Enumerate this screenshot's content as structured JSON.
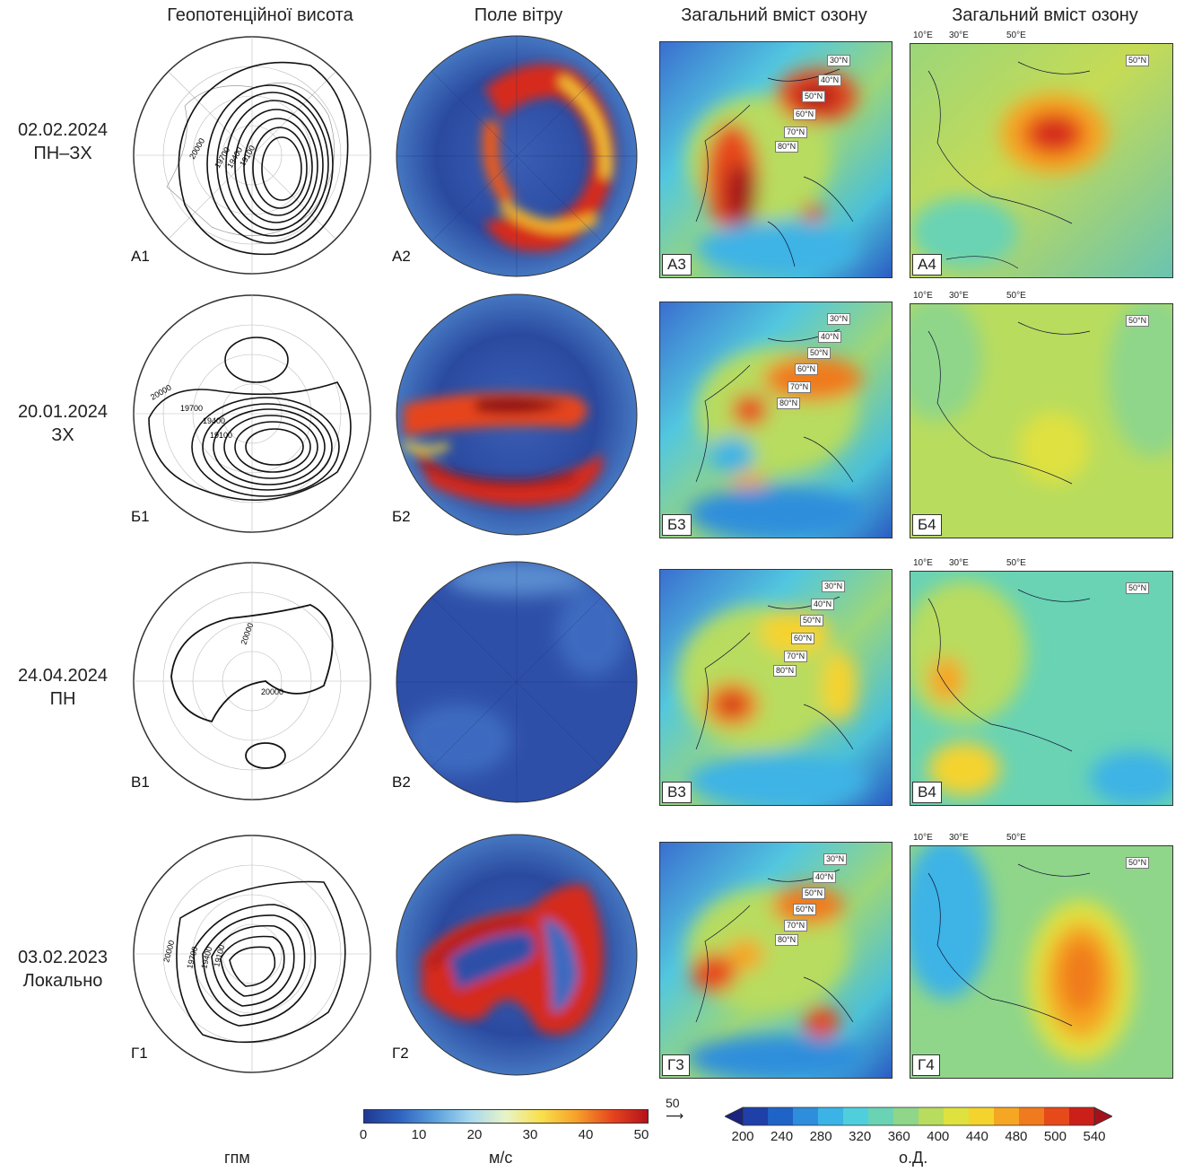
{
  "columns": {
    "geopotential": "Геопотенційної висота",
    "wind": "Поле вітру",
    "ozone1": "Загальний вміст озону",
    "ozone2": "Загальний вміст озону"
  },
  "rows": [
    {
      "date": "02.02.2024",
      "type": "ПН–ЗХ",
      "labels": [
        "А1",
        "А2",
        "А3",
        "А4"
      ],
      "contours": [
        "20000",
        "19700",
        "19400",
        "19100"
      ],
      "lon": [
        "10°E",
        "30°E",
        "50°E"
      ]
    },
    {
      "date": "20.01.2024",
      "type": "ЗХ",
      "labels": [
        "Б1",
        "Б2",
        "Б3",
        "Б4"
      ],
      "contours": [
        "20000",
        "19700",
        "19400",
        "19100"
      ],
      "lon": [
        "10°E",
        "30°E",
        "50°E"
      ]
    },
    {
      "date": "24.04.2024",
      "type": "ПН",
      "labels": [
        "В1",
        "В2",
        "В3",
        "В4"
      ],
      "contours": [
        "20000",
        "20000"
      ],
      "lon": [
        "10°E",
        "30°E",
        "50°E"
      ]
    },
    {
      "date": "03.02.2023",
      "type": "Локально",
      "labels": [
        "Г1",
        "Г2",
        "Г3",
        "Г4"
      ],
      "contours": [
        "20000",
        "19700",
        "19400",
        "19100"
      ],
      "lon": [
        "10°E",
        "30°E",
        "50°E"
      ]
    }
  ],
  "lat_tags": [
    "30°N",
    "40°N",
    "50°N",
    "60°N",
    "70°N",
    "80°N"
  ],
  "lat_tag_50": "50°N",
  "colorbars": {
    "wind": {
      "ticks": [
        "0",
        "10",
        "20",
        "30",
        "40",
        "50"
      ],
      "unit": "м/с",
      "vector_ref": "50",
      "colors": [
        "#1f3a93",
        "#2f63c0",
        "#5aa0dc",
        "#a8d8ef",
        "#e8f4c8",
        "#f9e04a",
        "#f6a02a",
        "#e6451e",
        "#b4121a"
      ]
    },
    "ozone": {
      "ticks": [
        "200",
        "240",
        "280",
        "320",
        "360",
        "400",
        "440",
        "480",
        "500",
        "540"
      ],
      "unit": "о.Д.",
      "colors": [
        "#1a237e",
        "#1e40a8",
        "#1f63c7",
        "#2f8edc",
        "#3cb3e6",
        "#4fcfdc",
        "#69d3b4",
        "#8fd68a",
        "#b8dc5e",
        "#dfe13f",
        "#f5d32e",
        "#f5a623",
        "#f07a1e",
        "#e64a1a",
        "#cc1f1a",
        "#a3121a"
      ]
    },
    "geo_unit": "гпм"
  }
}
